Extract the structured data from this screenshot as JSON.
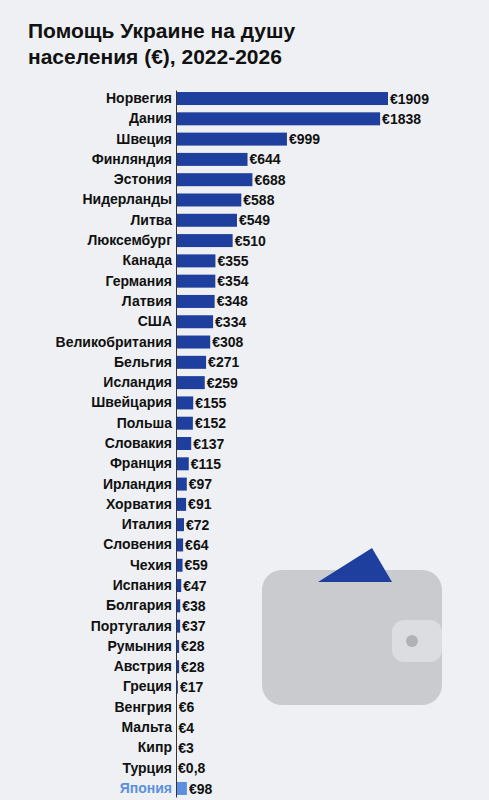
{
  "chart_data": {
    "type": "bar",
    "orientation": "horizontal",
    "title": "Помощь Украине на душу населения (€), 2022-2026",
    "categories": [
      "Норвегия",
      "Дания",
      "Швеция",
      "Финляндия",
      "Эстония",
      "Нидерланды",
      "Литва",
      "Люксембург",
      "Канада",
      "Германия",
      "Латвия",
      "США",
      "Великобритания",
      "Бельгия",
      "Исландия",
      "Швейцария",
      "Польша",
      "Словакия",
      "Франция",
      "Ирландия",
      "Хорватия",
      "Италия",
      "Словения",
      "Чехия",
      "Испания",
      "Болгария",
      "Португалия",
      "Румыния",
      "Австрия",
      "Греция",
      "Венгрия",
      "Мальта",
      "Кипр",
      "Турция",
      "Япония"
    ],
    "values": [
      1909,
      1838,
      999,
      644,
      688,
      588,
      549,
      510,
      355,
      354,
      348,
      334,
      308,
      271,
      259,
      155,
      152,
      137,
      115,
      97,
      91,
      72,
      64,
      59,
      47,
      38,
      37,
      28,
      28,
      17,
      6,
      4,
      3,
      0.8,
      98
    ],
    "value_labels": [
      "€1909",
      "€1838",
      "€999",
      "€644",
      "€688",
      "€588",
      "€549",
      "€510",
      "€355",
      "€354",
      "€348",
      "€334",
      "€308",
      "€271",
      "€259",
      "€155",
      "€152",
      "€137",
      "€115",
      "€97",
      "€91",
      "€72",
      "€64",
      "€59",
      "€47",
      "€38",
      "€37",
      "€28",
      "€28",
      "€17",
      "€6",
      "€4",
      "€3",
      "€0,8",
      "€98"
    ],
    "colors": [
      "#1f3f9f",
      "#1f3f9f",
      "#1f3f9f",
      "#1f3f9f",
      "#1f3f9f",
      "#1f3f9f",
      "#1f3f9f",
      "#1f3f9f",
      "#1f3f9f",
      "#1f3f9f",
      "#1f3f9f",
      "#1f3f9f",
      "#1f3f9f",
      "#1f3f9f",
      "#1f3f9f",
      "#1f3f9f",
      "#1f3f9f",
      "#1f3f9f",
      "#1f3f9f",
      "#1f3f9f",
      "#1f3f9f",
      "#1f3f9f",
      "#1f3f9f",
      "#1f3f9f",
      "#1f3f9f",
      "#1f3f9f",
      "#1f3f9f",
      "#1f3f9f",
      "#1f3f9f",
      "#1f3f9f",
      "#1f3f9f",
      "#1f3f9f",
      "#1f3f9f",
      "#1f3f9f",
      "#5b8fe0"
    ],
    "xlim": [
      0,
      1909
    ],
    "data_labels": true,
    "tick_labels": "y",
    "grid": false
  }
}
